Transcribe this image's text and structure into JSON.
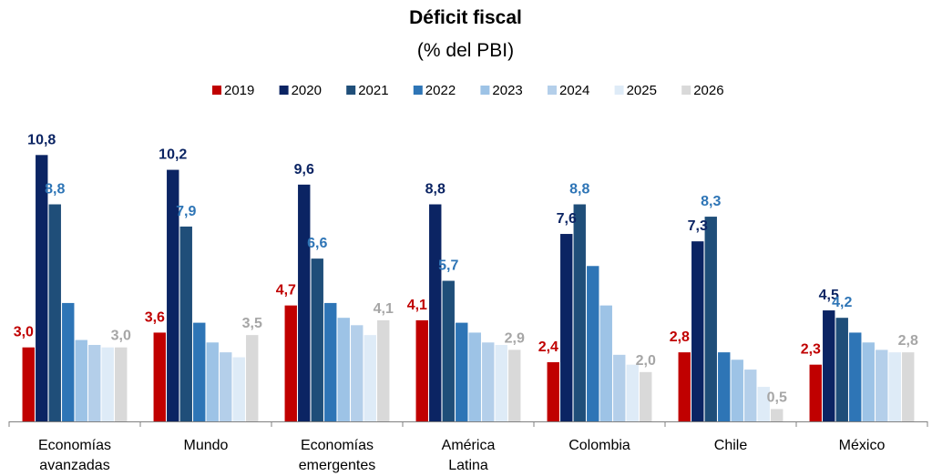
{
  "chart_data": {
    "type": "bar",
    "title": "Déficit fiscal",
    "subtitle": "(% del PBI)",
    "legend_position": "top",
    "grid": false,
    "ylim": [
      0,
      12
    ],
    "categories": [
      [
        "Economías",
        "avanzadas"
      ],
      [
        "Mundo"
      ],
      [
        "Economías",
        "emergentes"
      ],
      [
        "América",
        "Latina"
      ],
      [
        "Colombia"
      ],
      [
        "Chile"
      ],
      [
        "México"
      ]
    ],
    "series": [
      {
        "name": "2019",
        "color": "#c00000",
        "values": [
          3.0,
          3.6,
          4.7,
          4.1,
          2.4,
          2.8,
          2.3
        ]
      },
      {
        "name": "2020",
        "color": "#0b2463",
        "values": [
          10.8,
          10.2,
          9.6,
          8.8,
          7.6,
          7.3,
          4.5
        ]
      },
      {
        "name": "2021",
        "color": "#1f4e79",
        "values": [
          8.8,
          7.9,
          6.6,
          5.7,
          8.8,
          8.3,
          4.2
        ]
      },
      {
        "name": "2022",
        "color": "#2e75b6",
        "values": [
          4.8,
          4.0,
          4.8,
          4.0,
          6.3,
          2.8,
          3.6
        ]
      },
      {
        "name": "2023",
        "color": "#9dc3e6",
        "values": [
          3.3,
          3.2,
          4.2,
          3.6,
          4.7,
          2.5,
          3.2
        ]
      },
      {
        "name": "2024",
        "color": "#b4cfea",
        "values": [
          3.1,
          2.8,
          3.9,
          3.2,
          2.7,
          2.1,
          2.9
        ]
      },
      {
        "name": "2025",
        "color": "#deebf7",
        "values": [
          3.0,
          2.6,
          3.5,
          3.1,
          2.3,
          1.4,
          2.8
        ]
      },
      {
        "name": "2026",
        "color": "#d9d9d9",
        "values": [
          3.0,
          3.5,
          4.1,
          2.9,
          2.0,
          0.5,
          2.8
        ]
      }
    ],
    "data_labels": [
      {
        "series": 0,
        "category": 0,
        "text": "3,0"
      },
      {
        "series": 1,
        "category": 0,
        "text": "10,8"
      },
      {
        "series": 2,
        "category": 0,
        "text": "8,8"
      },
      {
        "series": 7,
        "category": 0,
        "text": "3,0"
      },
      {
        "series": 0,
        "category": 1,
        "text": "3,6"
      },
      {
        "series": 1,
        "category": 1,
        "text": "10,2"
      },
      {
        "series": 2,
        "category": 1,
        "text": "7,9"
      },
      {
        "series": 7,
        "category": 1,
        "text": "3,5"
      },
      {
        "series": 0,
        "category": 2,
        "text": "4,7"
      },
      {
        "series": 1,
        "category": 2,
        "text": "9,6"
      },
      {
        "series": 2,
        "category": 2,
        "text": "6,6"
      },
      {
        "series": 7,
        "category": 2,
        "text": "4,1"
      },
      {
        "series": 0,
        "category": 3,
        "text": "4,1"
      },
      {
        "series": 1,
        "category": 3,
        "text": "8,8"
      },
      {
        "series": 2,
        "category": 3,
        "text": "5,7"
      },
      {
        "series": 7,
        "category": 3,
        "text": "2,9"
      },
      {
        "series": 0,
        "category": 4,
        "text": "2,4"
      },
      {
        "series": 1,
        "category": 4,
        "text": "7,6"
      },
      {
        "series": 2,
        "category": 4,
        "text": "8,8"
      },
      {
        "series": 7,
        "category": 4,
        "text": "2,0"
      },
      {
        "series": 0,
        "category": 5,
        "text": "2,8"
      },
      {
        "series": 1,
        "category": 5,
        "text": "7,3"
      },
      {
        "series": 2,
        "category": 5,
        "text": "8,3"
      },
      {
        "series": 7,
        "category": 5,
        "text": "0,5"
      },
      {
        "series": 0,
        "category": 6,
        "text": "2,3"
      },
      {
        "series": 1,
        "category": 6,
        "text": "4,5"
      },
      {
        "series": 2,
        "category": 6,
        "text": "4,2"
      },
      {
        "series": 7,
        "category": 6,
        "text": "2,8"
      }
    ],
    "data_label_colors": [
      "#c00000",
      "#0b2463",
      "#2e75b6",
      "#a6a6a6"
    ]
  }
}
